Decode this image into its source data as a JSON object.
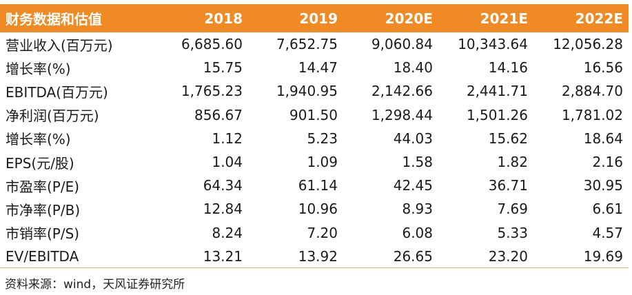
{
  "table": {
    "headers": [
      "财务数据和估值",
      "2018",
      "2019",
      "2020E",
      "2021E",
      "2022E"
    ],
    "rows": [
      [
        "营业收入(百万元)",
        "6,685.60",
        "7,652.75",
        "9,060.84",
        "10,343.64",
        "12,056.28"
      ],
      [
        "增长率(%)",
        "15.75",
        "14.47",
        "18.40",
        "14.16",
        "16.56"
      ],
      [
        "EBITDA(百万元)",
        "1,765.23",
        "1,940.95",
        "2,142.66",
        "2,441.71",
        "2,884.70"
      ],
      [
        "净利润(百万元)",
        "856.67",
        "901.50",
        "1,298.44",
        "1,501.26",
        "1,781.02"
      ],
      [
        "增长率(%)",
        "1.12",
        "5.23",
        "44.03",
        "15.62",
        "18.64"
      ],
      [
        "EPS(元/股)",
        "1.04",
        "1.09",
        "1.58",
        "1.82",
        "2.16"
      ],
      [
        "市盈率(P/E)",
        "64.34",
        "61.14",
        "42.45",
        "36.71",
        "30.95"
      ],
      [
        "市净率(P/B)",
        "12.84",
        "10.96",
        "8.93",
        "7.69",
        "6.61"
      ],
      [
        "市销率(P/S)",
        "8.24",
        "7.20",
        "6.08",
        "5.33",
        "4.57"
      ],
      [
        "EV/EBITDA",
        "13.21",
        "13.92",
        "26.65",
        "23.20",
        "19.69"
      ]
    ]
  },
  "source": "资料来源：wind，天风证券研究所",
  "colors": {
    "header_bg": "#F08A24",
    "header_text": "#ffffff"
  }
}
